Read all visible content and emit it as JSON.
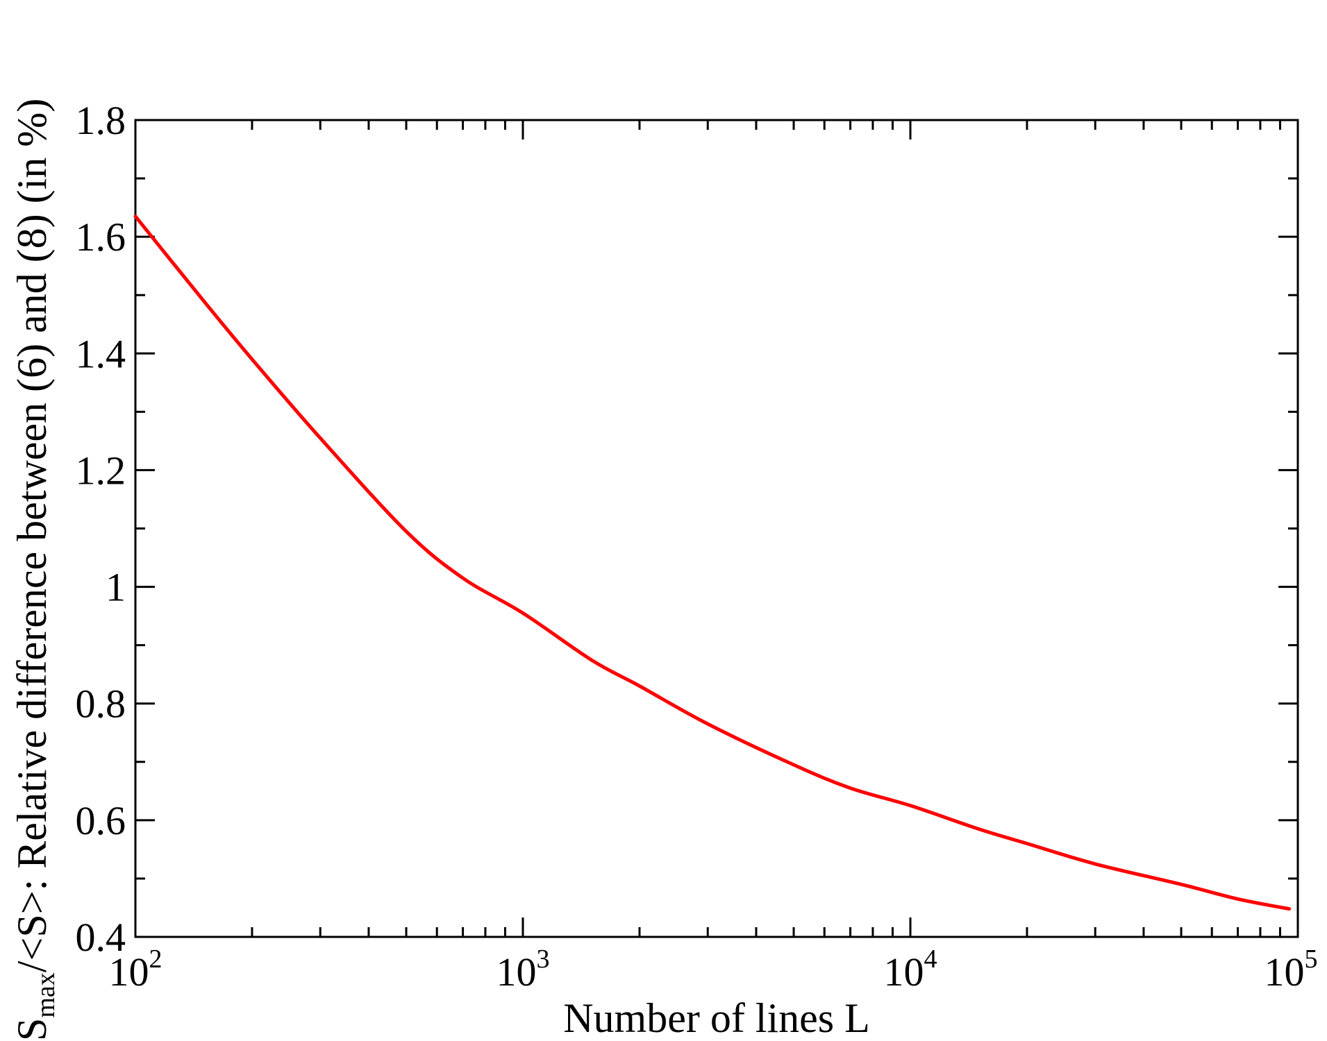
{
  "chart_data": {
    "type": "line",
    "xscale": "log",
    "xlim": [
      100,
      100000
    ],
    "ylim": [
      0.4,
      1.8
    ],
    "x_ticks": [
      {
        "base": "10",
        "exp": "2",
        "value": 100
      },
      {
        "base": "10",
        "exp": "3",
        "value": 1000
      },
      {
        "base": "10",
        "exp": "4",
        "value": 10000
      },
      {
        "base": "10",
        "exp": "5",
        "value": 100000
      }
    ],
    "y_ticks": [
      {
        "label": "0.4",
        "value": 0.4
      },
      {
        "label": "0.6",
        "value": 0.6
      },
      {
        "label": "0.8",
        "value": 0.8
      },
      {
        "label": "1",
        "value": 1.0
      },
      {
        "label": "1.2",
        "value": 1.2
      },
      {
        "label": "1.4",
        "value": 1.4
      },
      {
        "label": "1.6",
        "value": 1.6
      },
      {
        "label": "1.8",
        "value": 1.8
      }
    ],
    "xlabel": "Number of lines L",
    "ylabel": {
      "main": "S",
      "subscript": "max",
      "rest": "/<S>: Relative difference between (6) and (8) (in %)"
    },
    "grid": false,
    "series": [
      {
        "color": "#ff0000",
        "x": [
          100,
          150,
          200,
          300,
          500,
          700,
          1000,
          1500,
          2000,
          3000,
          5000,
          7000,
          10000,
          15000,
          20000,
          30000,
          50000,
          70000,
          95000
        ],
        "y": [
          1.635,
          1.49,
          1.39,
          1.255,
          1.095,
          1.015,
          0.955,
          0.875,
          0.83,
          0.765,
          0.695,
          0.655,
          0.625,
          0.585,
          0.56,
          0.525,
          0.49,
          0.465,
          0.448
        ]
      }
    ]
  }
}
